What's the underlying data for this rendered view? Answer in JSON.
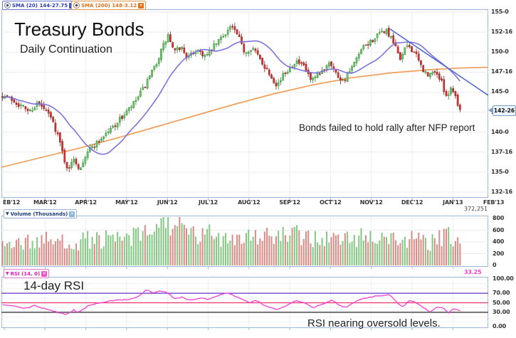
{
  "app": {
    "title": "Treasury Bonds",
    "subtitle": "Daily Continuation"
  },
  "legend": {
    "sma20": {
      "label": "SMA (20) 144-27.75",
      "color": "#2f3bbf"
    },
    "sma200": {
      "label": "SMA (200) 148-3.12",
      "color": "#e2711d"
    },
    "volume": {
      "label": "Volume (Thousands)",
      "color": "#1a3d7c"
    },
    "rsi": {
      "label": "RSI (14, 0)",
      "color": "#e61ab4"
    }
  },
  "annotations": {
    "nfp": "Bonds failed to hold rally after NFP report",
    "rsi_note": "14-day RSI",
    "oversold_note": "RSI nearing oversold levels."
  },
  "price_axis": {
    "labels": [
      "155-0",
      "152-16",
      "150-0",
      "147-16",
      "145-0",
      "142-16",
      "140-0",
      "137-16",
      "135-0",
      "132-16"
    ],
    "current_price": "142-26"
  },
  "date_axis": {
    "labels": [
      "EB'12",
      "MAR'12",
      "APR'12",
      "MAY'12",
      "JUN'12",
      "JUL'12",
      "AUG'12",
      "SEP'12",
      "OCT'12",
      "NOV'12",
      "DEC'12",
      "JAN'13",
      "FEB'13"
    ]
  },
  "volume_axis": {
    "labels": [
      "800",
      "600",
      "400",
      "200",
      "0"
    ],
    "last_value": "372,251"
  },
  "rsi_axis": {
    "labels": [
      "100.00",
      "70.00",
      "50.00",
      "30.00",
      "0.00"
    ],
    "last_value": "33.25"
  },
  "colors": {
    "up_candle": "#72c472",
    "up_candle_edge": "#2e8b2e",
    "down_candle": "#cf3430",
    "down_candle_edge": "#8f1f1c",
    "vol_up": "#84c884",
    "vol_down": "#d98c86",
    "sma20": "#7b74dd",
    "sma200": "#f09a52",
    "trendline": "#4a63cf",
    "rsi_line": "#f23ed2",
    "rsi_70": "#6633cc",
    "rsi_50": "#ee3366",
    "rsi_30": "#707070",
    "pane_border": "#9cb8d8",
    "grid_h": "#f2eaea",
    "grid_v": "#e8eef5",
    "grid_light": "#ededed"
  },
  "chart_data": [
    {
      "type": "candlestick",
      "title": "Treasury Bonds — Daily Continuation",
      "x_range": [
        "FEB'12",
        "FEB'13"
      ],
      "ylim": [
        132.5,
        155
      ],
      "y_tick_step_points": 2.5,
      "bars": 200,
      "last_close_32nds": 142.8125,
      "close_path": [
        [
          0,
          144.6
        ],
        [
          0.02,
          144.1
        ],
        [
          0.04,
          143.3
        ],
        [
          0.06,
          142.6
        ],
        [
          0.075,
          143.6
        ],
        [
          0.09,
          142.9
        ],
        [
          0.105,
          141.9
        ],
        [
          0.12,
          139.8
        ],
        [
          0.135,
          136.6
        ],
        [
          0.145,
          135.1
        ],
        [
          0.155,
          136.9
        ],
        [
          0.168,
          135.4
        ],
        [
          0.185,
          137.6
        ],
        [
          0.21,
          138.9
        ],
        [
          0.235,
          140.3
        ],
        [
          0.26,
          141.8
        ],
        [
          0.285,
          143.4
        ],
        [
          0.31,
          145.6
        ],
        [
          0.33,
          147.8
        ],
        [
          0.35,
          150.6
        ],
        [
          0.362,
          152.1
        ],
        [
          0.375,
          149.9
        ],
        [
          0.39,
          150.7
        ],
        [
          0.405,
          149.2
        ],
        [
          0.425,
          150.4
        ],
        [
          0.445,
          149.4
        ],
        [
          0.465,
          150.9
        ],
        [
          0.485,
          152.3
        ],
        [
          0.5,
          153.3
        ],
        [
          0.515,
          151.9
        ],
        [
          0.53,
          149.9
        ],
        [
          0.545,
          150.7
        ],
        [
          0.565,
          148.9
        ],
        [
          0.585,
          147.2
        ],
        [
          0.6,
          145.9
        ],
        [
          0.62,
          147.6
        ],
        [
          0.64,
          148.9
        ],
        [
          0.66,
          148.1
        ],
        [
          0.675,
          146.3
        ],
        [
          0.695,
          147.3
        ],
        [
          0.715,
          149
        ],
        [
          0.73,
          147.2
        ],
        [
          0.745,
          146.4
        ],
        [
          0.765,
          148.1
        ],
        [
          0.785,
          150.3
        ],
        [
          0.81,
          151.6
        ],
        [
          0.838,
          152.8
        ],
        [
          0.855,
          151
        ],
        [
          0.87,
          149.2
        ],
        [
          0.885,
          150.9
        ],
        [
          0.9,
          150
        ],
        [
          0.915,
          148.2
        ],
        [
          0.93,
          146.9
        ],
        [
          0.945,
          147.7
        ],
        [
          0.958,
          146.4
        ],
        [
          0.972,
          144.4
        ],
        [
          0.982,
          145.8
        ],
        [
          1,
          142.81
        ]
      ],
      "sma20_window": 20,
      "sma200_path": [
        [
          0,
          135.6
        ],
        [
          0.08,
          136.8
        ],
        [
          0.16,
          138
        ],
        [
          0.24,
          139.3
        ],
        [
          0.32,
          140.7
        ],
        [
          0.4,
          142.1
        ],
        [
          0.48,
          143.5
        ],
        [
          0.56,
          144.8
        ],
        [
          0.64,
          145.9
        ],
        [
          0.72,
          146.8
        ],
        [
          0.8,
          147.4
        ],
        [
          0.88,
          147.8
        ],
        [
          0.94,
          148
        ],
        [
          1,
          148.1
        ]
      ],
      "trendline": {
        "from": [
          0.798,
          152.9
        ],
        "to": [
          1.0,
          144.6
        ]
      }
    },
    {
      "type": "bar",
      "title": "Volume (Thousands)",
      "ylim": [
        0,
        880
      ],
      "last_value": 372,
      "envelope": [
        [
          0,
          430
        ],
        [
          0.05,
          390
        ],
        [
          0.1,
          420
        ],
        [
          0.15,
          400
        ],
        [
          0.2,
          440
        ],
        [
          0.25,
          430
        ],
        [
          0.3,
          500
        ],
        [
          0.33,
          560
        ],
        [
          0.35,
          840
        ],
        [
          0.36,
          870
        ],
        [
          0.37,
          700
        ],
        [
          0.4,
          560
        ],
        [
          0.43,
          480
        ],
        [
          0.45,
          520
        ],
        [
          0.5,
          500
        ],
        [
          0.55,
          520
        ],
        [
          0.6,
          480
        ],
        [
          0.65,
          500
        ],
        [
          0.7,
          460
        ],
        [
          0.75,
          440
        ],
        [
          0.78,
          480
        ],
        [
          0.82,
          500
        ],
        [
          0.85,
          460
        ],
        [
          0.88,
          420
        ],
        [
          0.9,
          440
        ],
        [
          0.93,
          380
        ],
        [
          0.96,
          450
        ],
        [
          0.98,
          500
        ],
        [
          1,
          372
        ]
      ]
    },
    {
      "type": "line",
      "title": "RSI (14, 0)",
      "ylim": [
        0,
        100
      ],
      "levels": [
        70,
        50,
        30
      ],
      "last_value": 33.25,
      "path": [
        [
          0,
          46
        ],
        [
          0.03,
          42
        ],
        [
          0.05,
          38
        ],
        [
          0.07,
          44
        ],
        [
          0.1,
          36
        ],
        [
          0.125,
          28
        ],
        [
          0.14,
          26
        ],
        [
          0.155,
          35
        ],
        [
          0.165,
          30
        ],
        [
          0.19,
          45
        ],
        [
          0.22,
          52
        ],
        [
          0.25,
          55
        ],
        [
          0.28,
          58
        ],
        [
          0.3,
          65
        ],
        [
          0.315,
          78
        ],
        [
          0.33,
          70
        ],
        [
          0.345,
          75
        ],
        [
          0.36,
          72
        ],
        [
          0.375,
          58
        ],
        [
          0.39,
          62
        ],
        [
          0.41,
          55
        ],
        [
          0.43,
          60
        ],
        [
          0.45,
          57
        ],
        [
          0.47,
          65
        ],
        [
          0.49,
          70
        ],
        [
          0.5,
          68
        ],
        [
          0.52,
          58
        ],
        [
          0.54,
          50
        ],
        [
          0.555,
          55
        ],
        [
          0.57,
          46
        ],
        [
          0.6,
          35
        ],
        [
          0.615,
          42
        ],
        [
          0.64,
          55
        ],
        [
          0.655,
          52
        ],
        [
          0.68,
          40
        ],
        [
          0.7,
          48
        ],
        [
          0.72,
          55
        ],
        [
          0.735,
          45
        ],
        [
          0.75,
          40
        ],
        [
          0.77,
          52
        ],
        [
          0.79,
          60
        ],
        [
          0.81,
          63
        ],
        [
          0.845,
          68
        ],
        [
          0.86,
          52
        ],
        [
          0.875,
          42
        ],
        [
          0.89,
          55
        ],
        [
          0.905,
          50
        ],
        [
          0.92,
          40
        ],
        [
          0.935,
          30
        ],
        [
          0.95,
          42
        ],
        [
          0.965,
          38
        ],
        [
          0.975,
          28
        ],
        [
          0.985,
          38
        ],
        [
          1,
          33.25
        ]
      ]
    }
  ],
  "synth": {
    "seed": 7,
    "noise_close": 0.7,
    "noise_vol": 0.76
  }
}
